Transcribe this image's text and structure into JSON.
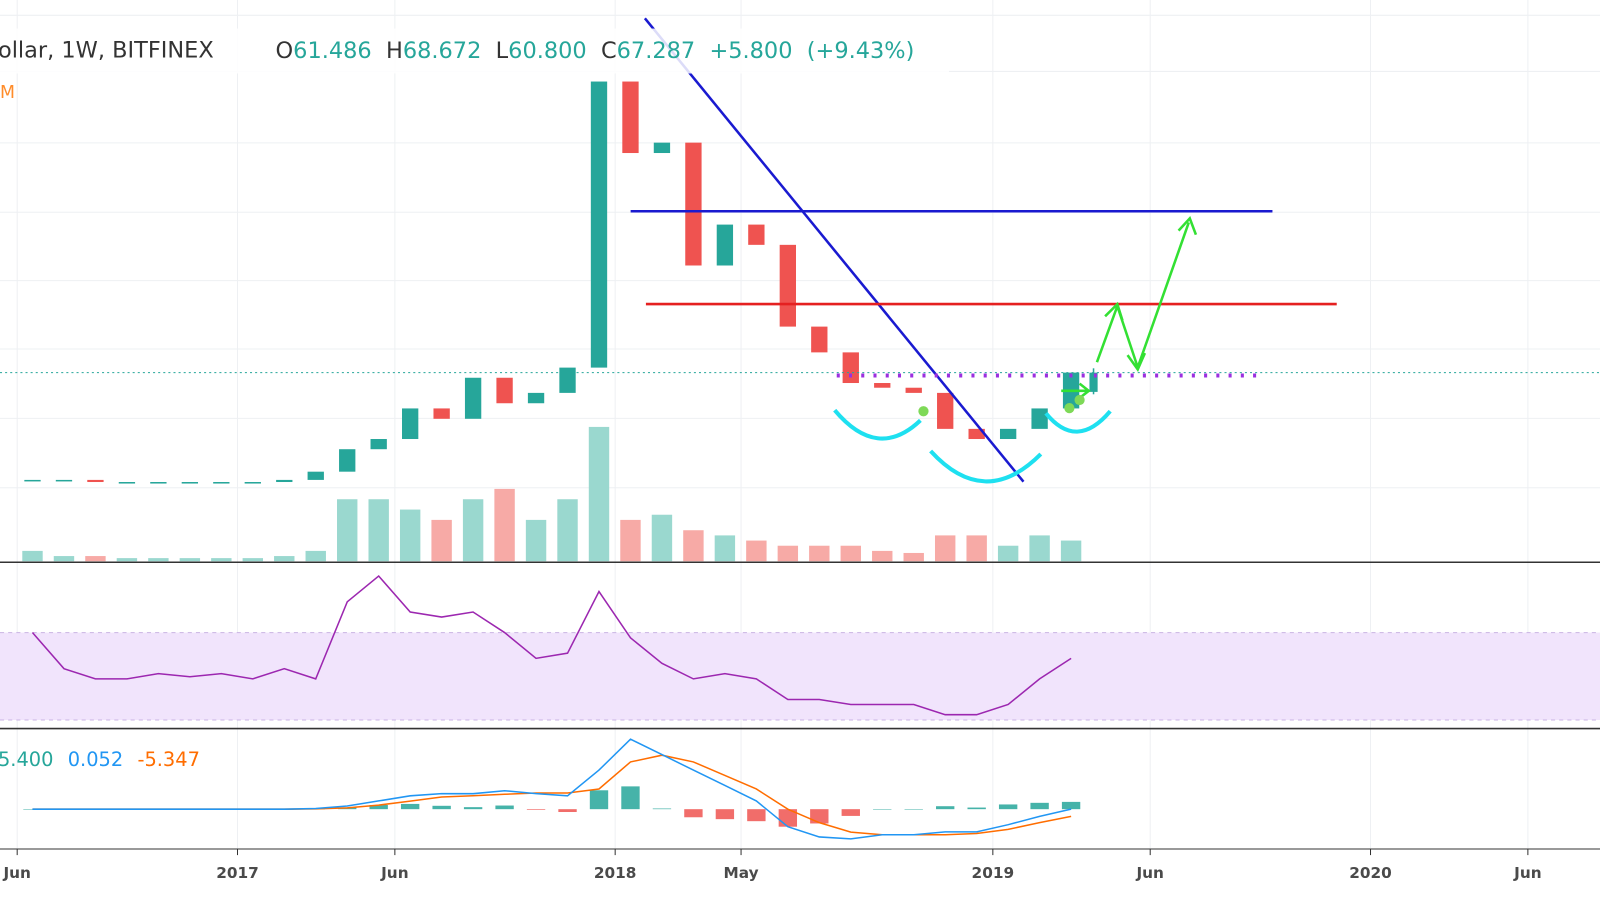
{
  "chart_data": {
    "type": "candlestick",
    "symbol": "ollar, 1W, BITFINEX",
    "indicator_label": "M",
    "last_bar": [
      {
        "key": "O",
        "value": 61.486
      },
      {
        "key": "H",
        "value": 68.672
      },
      {
        "key": "L",
        "value": 60.8,
        "label": "60.800"
      },
      {
        "key": "C",
        "value": 67.287
      }
    ],
    "change": {
      "value": 5.8,
      "label": "+5.800"
    },
    "change_percent": {
      "value": 9.43,
      "label": "(+9.43%)"
    },
    "x": [
      "2016-06",
      "2016-07",
      "2016-08",
      "2016-09",
      "2016-10",
      "2016-11",
      "2016-12",
      "2017-01",
      "2017-02",
      "2017-03",
      "2017-04",
      "2017-05",
      "2017-06",
      "2017-07",
      "2017-08",
      "2017-09",
      "2017-10",
      "2017-11",
      "2017-12",
      "2018-01",
      "2018-02",
      "2018-03",
      "2018-04",
      "2018-05",
      "2018-06",
      "2018-07",
      "2018-08",
      "2018-09",
      "2018-10",
      "2018-11",
      "2018-12",
      "2019-01",
      "2019-02",
      "2019-03"
    ],
    "close": [
      40.7,
      40.7,
      40.3,
      40.3,
      40.3,
      40.3,
      40.3,
      40.3,
      40.7,
      42.3,
      47.0,
      49.3,
      56.9,
      54.2,
      65.7,
      58.3,
      61.2,
      68.9,
      263.4,
      188.4,
      197.8,
      111.2,
      134.7,
      122.5,
      83.5,
      74.0,
      64.1,
      62.7,
      61.2,
      51.7,
      49.3,
      51.7,
      56.9,
      67.3
    ],
    "up_color": "#26a69a",
    "down_color": "#ef5350",
    "log_scale": true,
    "ylim": [
      27.8,
      359.3
    ],
    "xlim": [
      "2016-05",
      "2020-08"
    ],
    "xticks": [
      {
        "value": "2016-06",
        "label": "Jun"
      },
      {
        "value": "2017-01",
        "label": "2017"
      },
      {
        "value": "2017-06",
        "label": "Jun"
      },
      {
        "value": "2018-01",
        "label": "2018"
      },
      {
        "value": "2018-05",
        "label": "May"
      },
      {
        "value": "2019-01",
        "label": "2019"
      },
      {
        "value": "2019-06",
        "label": "Jun"
      },
      {
        "value": "2020-01",
        "label": "2020"
      },
      {
        "value": "2020-06",
        "label": "Jun"
      }
    ],
    "grid": true,
    "volume": {
      "values": [
        30,
        15,
        15,
        9,
        9,
        9,
        9,
        9,
        15,
        30,
        180,
        180,
        150,
        120,
        180,
        210,
        120,
        180,
        390,
        120,
        135,
        90,
        75,
        60,
        45,
        45,
        45,
        30,
        24,
        75,
        75,
        45,
        75,
        60
      ],
      "ylim": [
        0,
        400
      ],
      "up_color": "#9ad8cf",
      "down_color": "#f7aaa6"
    },
    "rsi": {
      "values": [
        70,
        53.5,
        48.8,
        48.8,
        51.2,
        49.8,
        51.2,
        48.8,
        53.5,
        48.8,
        84.1,
        95.9,
        79.4,
        77.1,
        79.4,
        70,
        58.2,
        60.6,
        88.8,
        67.6,
        55.9,
        48.8,
        51.2,
        48.8,
        39.4,
        39.4,
        37.1,
        37.1,
        37.1,
        32.4,
        32.4,
        37.1,
        48.8,
        58.2
      ],
      "ylim": [
        27,
        98
      ],
      "band": [
        30,
        70
      ],
      "color": "#9c27b0",
      "band_color": "#f1e4fc"
    },
    "macd": {
      "histogram_value": {
        "value": 5.4,
        "label": "5.400"
      },
      "macd_value": 0.052,
      "signal_value": -5.347,
      "line": [
        0,
        0,
        0,
        0,
        0,
        0,
        0,
        0,
        0,
        0.5,
        2.3,
        6.1,
        9.9,
        11.5,
        11.5,
        13.7,
        11.5,
        9.9,
        29,
        51.9,
        40.5,
        29,
        17.6,
        6.1,
        -13,
        -20.6,
        -22,
        -19,
        -19,
        -16.8,
        -16.8,
        -11.5,
        -5.3,
        0.052
      ],
      "signal": [
        0,
        0,
        0,
        0,
        0,
        0,
        0,
        0,
        0,
        0.2,
        1,
        3,
        6,
        9,
        10,
        11,
        12,
        12,
        15,
        35,
        40,
        35,
        25,
        15,
        0,
        -10,
        -17,
        -19,
        -19,
        -19,
        -18,
        -15,
        -10,
        -5.347
      ],
      "histogram": [
        0,
        0,
        0,
        0,
        0,
        0,
        0,
        0,
        0,
        0.3,
        1.3,
        3.1,
        3.9,
        2.5,
        1.5,
        2.7,
        -0.5,
        -2.1,
        14,
        16.9,
        0.5,
        -6,
        -7.4,
        -8.9,
        -13,
        -10.6,
        -5,
        0,
        0,
        2.2,
        1.2,
        3.5,
        4.7,
        5.4
      ],
      "ylim": [
        -28,
        59
      ],
      "line_color": "#2196f3",
      "signal_color": "#ff6d00",
      "hist_up_color": "#26a69a",
      "hist_down_color": "#ef5350"
    }
  }
}
